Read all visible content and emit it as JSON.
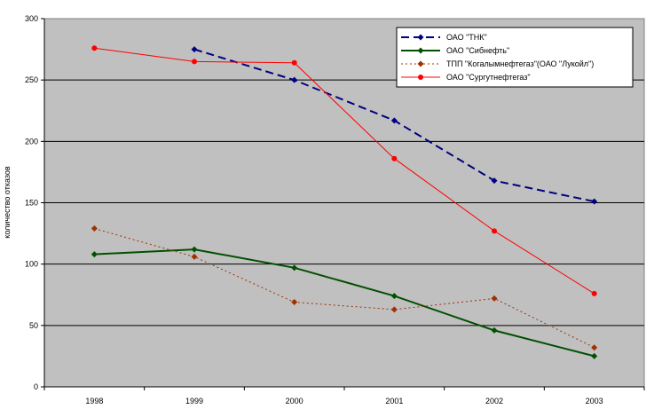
{
  "chart_data": {
    "type": "line",
    "title": "",
    "xlabel": "",
    "ylabel": "количество отказов",
    "categories": [
      "1998",
      "1999",
      "2000",
      "2001",
      "2002",
      "2003"
    ],
    "ylim": [
      0,
      300
    ],
    "yticks": [
      0,
      50,
      100,
      150,
      200,
      250,
      300
    ],
    "grid": "horizontal",
    "legend_position": "top-right",
    "plot_background": "#c0c0c0",
    "series": [
      {
        "name": "ОАО \"ТНК\"",
        "color": "#000080",
        "line_style": "dashed",
        "marker": "diamond",
        "values": [
          null,
          275,
          250,
          217,
          168,
          151
        ]
      },
      {
        "name": "ОАО \"Сибнефть\"",
        "color": "#005000",
        "line_style": "solid",
        "marker": "diamond",
        "values": [
          108,
          112,
          97,
          74,
          46,
          25
        ]
      },
      {
        "name": "ТПП \"Когалымнефтегаз\"(ОАО \"Лукойл\")",
        "color": "#a03000",
        "line_style": "dotted",
        "marker": "diamond",
        "values": [
          129,
          106,
          69,
          63,
          72,
          32
        ]
      },
      {
        "name": "ОАО \"Сургутнефтегаз\"",
        "color": "#ff0000",
        "line_style": "solid",
        "marker": "circle",
        "values": [
          276,
          265,
          264,
          186,
          127,
          76
        ]
      }
    ]
  }
}
